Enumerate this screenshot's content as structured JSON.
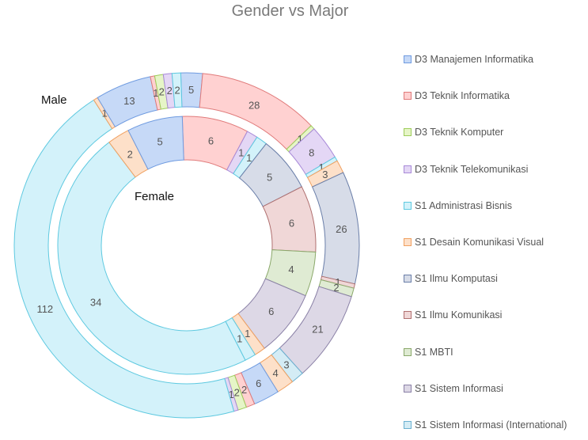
{
  "chart_data": {
    "type": "donut",
    "title": "Gender vs Major",
    "ring_labels": {
      "outer": "Male",
      "inner": "Female"
    },
    "categories": [
      "D3 Manajemen Informatika",
      "D3 Teknik Informatika",
      "D3 Teknik Komputer",
      "D3 Teknik Telekomunikasi",
      "S1 Administrasi Bisnis",
      "S1 Desain Komunikasi Visual",
      "S1 Ilmu Komputasi",
      "S1 Ilmu Komunikasi",
      "S1 MBTI",
      "S1 Sistem Informasi",
      "S1 Sistem Informasi (International)"
    ],
    "colors": [
      "#c6d9f7",
      "#ffd1d1",
      "#e6f5c7",
      "#e4d7f5",
      "#d3f2fa",
      "#fde0c9",
      "#d7dce8",
      "#f0d7d7",
      "#dfebd3",
      "#ddd8e6",
      "#d4ecf5"
    ],
    "borders": [
      "#6f9be0",
      "#e07a7a",
      "#9dcc5a",
      "#a88ad8",
      "#5ec9e0",
      "#f0a060",
      "#6a7ea8",
      "#b07070",
      "#8aa86a",
      "#8a80a6",
      "#6ab0d0"
    ],
    "outer_segments": [
      {
        "category": 0,
        "value": 5
      },
      {
        "category": 1,
        "value": 28
      },
      {
        "category": 2,
        "value": 1
      },
      {
        "category": 3,
        "value": 8
      },
      {
        "category": 4,
        "value": 1
      },
      {
        "category": 5,
        "value": 3
      },
      {
        "category": 6,
        "value": 26
      },
      {
        "category": 7,
        "value": 1
      },
      {
        "category": 8,
        "value": 2
      },
      {
        "category": 9,
        "value": 21
      },
      {
        "category": 10,
        "value": 3
      },
      {
        "category": 5,
        "value": 4
      },
      {
        "category": 0,
        "value": 6
      },
      {
        "category": 1,
        "value": 2
      },
      {
        "category": 2,
        "value": 2
      },
      {
        "category": 3,
        "value": 1
      },
      {
        "category": 4,
        "value": 112
      },
      {
        "category": 5,
        "value": 1
      },
      {
        "category": 0,
        "value": 13
      },
      {
        "category": 1,
        "value": 1
      },
      {
        "category": 2,
        "value": 2
      },
      {
        "category": 3,
        "value": 2
      },
      {
        "category": 4,
        "value": 2
      }
    ],
    "inner_segments": [
      {
        "category": 1,
        "value": 6
      },
      {
        "category": 3,
        "value": 1
      },
      {
        "category": 4,
        "value": 1
      },
      {
        "category": 6,
        "value": 5
      },
      {
        "category": 7,
        "value": 6
      },
      {
        "category": 8,
        "value": 4
      },
      {
        "category": 9,
        "value": 6
      },
      {
        "category": 5,
        "value": 1
      },
      {
        "category": 4,
        "value": 1
      },
      {
        "category": 4,
        "value": 34
      },
      {
        "category": 5,
        "value": 2
      },
      {
        "category": 0,
        "value": 5
      }
    ]
  }
}
